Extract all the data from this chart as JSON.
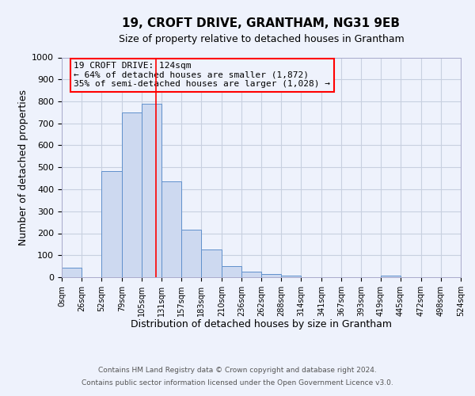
{
  "title": "19, CROFT DRIVE, GRANTHAM, NG31 9EB",
  "subtitle": "Size of property relative to detached houses in Grantham",
  "xlabel": "Distribution of detached houses by size in Grantham",
  "ylabel": "Number of detached properties",
  "bar_edges": [
    0,
    26,
    52,
    79,
    105,
    131,
    157,
    183,
    210,
    236,
    262,
    288,
    314,
    341,
    367,
    393,
    419,
    445,
    472,
    498,
    524
  ],
  "bar_heights": [
    43,
    0,
    483,
    748,
    790,
    437,
    218,
    125,
    52,
    27,
    15,
    8,
    0,
    0,
    0,
    0,
    7,
    0,
    0,
    0
  ],
  "tick_labels": [
    "0sqm",
    "26sqm",
    "52sqm",
    "79sqm",
    "105sqm",
    "131sqm",
    "157sqm",
    "183sqm",
    "210sqm",
    "236sqm",
    "262sqm",
    "288sqm",
    "314sqm",
    "341sqm",
    "367sqm",
    "393sqm",
    "419sqm",
    "445sqm",
    "472sqm",
    "498sqm",
    "524sqm"
  ],
  "bar_facecolor": "#cdd9f0",
  "bar_edgecolor": "#6090cc",
  "ylim": [
    0,
    1000
  ],
  "yticks": [
    0,
    100,
    200,
    300,
    400,
    500,
    600,
    700,
    800,
    900,
    1000
  ],
  "vline_x": 124,
  "vline_color": "red",
  "annotation_title": "19 CROFT DRIVE: 124sqm",
  "annotation_line1": "← 64% of detached houses are smaller (1,872)",
  "annotation_line2": "35% of semi-detached houses are larger (1,028) →",
  "annotation_box_edgecolor": "red",
  "footer1": "Contains HM Land Registry data © Crown copyright and database right 2024.",
  "footer2": "Contains public sector information licensed under the Open Government Licence v3.0.",
  "background_color": "#eef2fc",
  "grid_color": "#c8d0e0"
}
